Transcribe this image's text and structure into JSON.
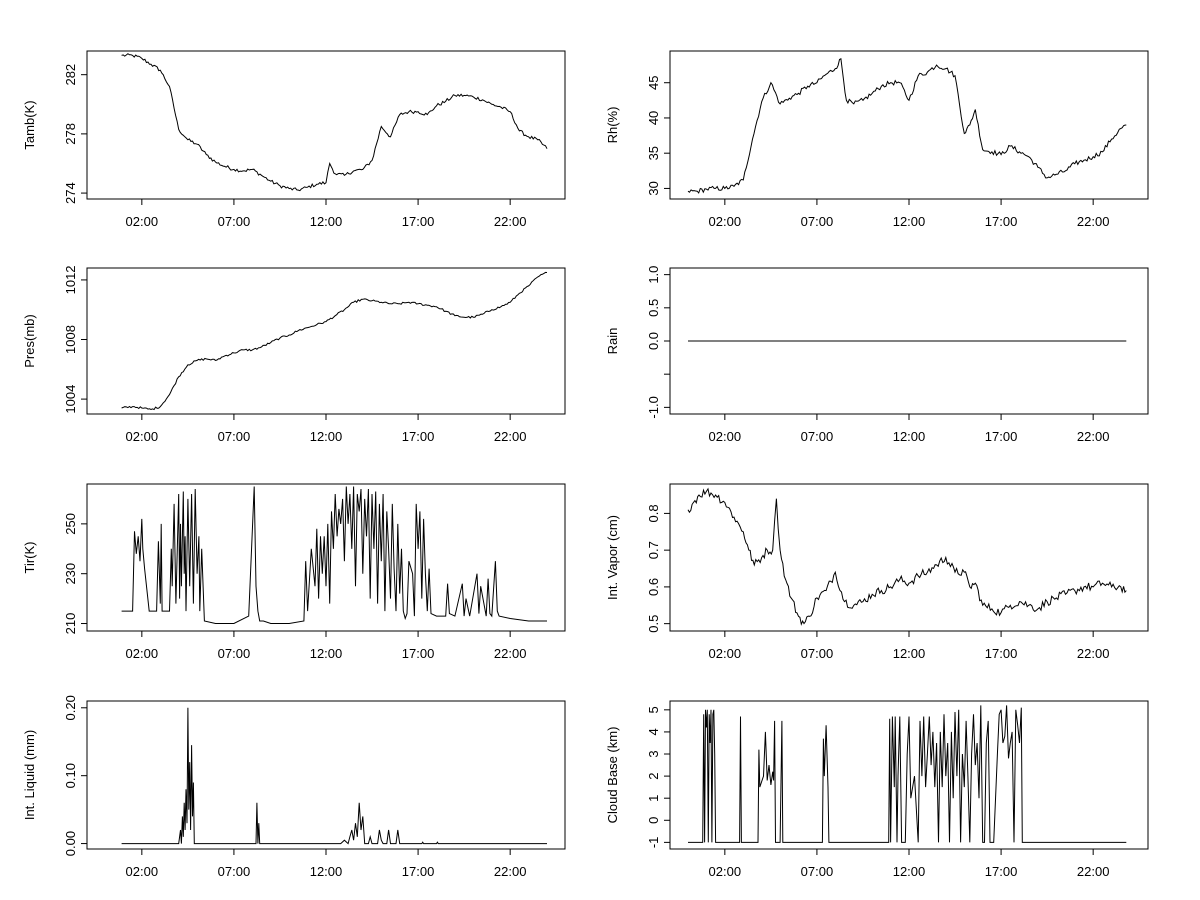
{
  "chart_data": [
    {
      "type": "line",
      "ylabel": "Tamb(K)",
      "xlim": [
        0,
        24
      ],
      "ylim": [
        273.6,
        283.6
      ],
      "yticks": [
        274,
        278,
        282
      ],
      "xticks": [
        2,
        7,
        12,
        17,
        22
      ],
      "xtick_labels": [
        "02:00",
        "07:00",
        "12:00",
        "17:00",
        "22:00"
      ],
      "noise": 0.12,
      "x": [
        0.9,
        1.5,
        2.0,
        2.5,
        3.0,
        3.5,
        4.0,
        4.5,
        5.0,
        5.5,
        6.0,
        6.5,
        7.0,
        7.5,
        8.0,
        8.5,
        9.0,
        9.5,
        10.0,
        10.5,
        11.0,
        11.5,
        12.0,
        12.2,
        12.5,
        13.0,
        13.5,
        14.0,
        14.5,
        15.0,
        15.5,
        16.0,
        16.5,
        17.0,
        17.5,
        18.0,
        18.5,
        19.0,
        19.5,
        20.0,
        20.5,
        21.0,
        21.5,
        22.0,
        22.5,
        23.0,
        23.5,
        24.0
      ],
      "y": [
        283.3,
        283.3,
        283.1,
        282.7,
        282.3,
        281.2,
        278.3,
        277.6,
        277.3,
        276.6,
        276.1,
        275.8,
        275.6,
        275.5,
        275.6,
        275.2,
        274.8,
        274.5,
        274.3,
        274.2,
        274.4,
        274.6,
        274.7,
        276.0,
        275.3,
        275.2,
        275.5,
        275.6,
        276.2,
        278.5,
        277.8,
        279.3,
        279.5,
        279.5,
        279.3,
        279.9,
        280.2,
        280.6,
        280.6,
        280.5,
        280.3,
        280.0,
        279.8,
        279.5,
        278.2,
        277.8,
        277.6,
        277.0
      ]
    },
    {
      "type": "line",
      "ylabel": "Rh(%)",
      "xlim": [
        0,
        24
      ],
      "ylim": [
        28.5,
        49.5
      ],
      "yticks": [
        30,
        35,
        40,
        45
      ],
      "xticks": [
        2,
        7,
        12,
        17,
        22
      ],
      "xtick_labels": [
        "02:00",
        "07:00",
        "12:00",
        "17:00",
        "22:00"
      ],
      "noise": 0.35,
      "x": [
        0.0,
        0.5,
        1.0,
        1.5,
        2.0,
        2.5,
        3.0,
        3.5,
        4.0,
        4.5,
        5.0,
        5.5,
        6.0,
        6.5,
        7.0,
        7.5,
        8.0,
        8.3,
        8.6,
        9.0,
        9.5,
        10.0,
        10.5,
        11.0,
        11.5,
        12.0,
        12.5,
        13.0,
        13.5,
        14.0,
        14.5,
        15.0,
        15.3,
        15.6,
        16.0,
        16.5,
        17.0,
        17.5,
        18.0,
        18.5,
        19.0,
        19.5,
        20.0,
        20.5,
        21.0,
        21.5,
        22.0,
        22.5,
        23.0,
        23.5,
        23.8
      ],
      "y": [
        29.6,
        29.6,
        29.9,
        30.0,
        30.0,
        30.3,
        31.2,
        37.0,
        42.3,
        45.0,
        42.0,
        42.8,
        43.5,
        44.5,
        45.0,
        46.2,
        47.0,
        48.4,
        42.5,
        42.0,
        42.5,
        43.5,
        44.5,
        45.0,
        45.0,
        42.5,
        46.0,
        46.5,
        47.5,
        47.0,
        46.0,
        37.8,
        39.0,
        41.2,
        35.5,
        35.2,
        34.8,
        36.0,
        35.2,
        34.5,
        33.0,
        31.5,
        32.0,
        32.5,
        33.5,
        34.0,
        34.5,
        35.2,
        37.0,
        38.5,
        39.0
      ]
    },
    {
      "type": "line",
      "ylabel": "Pres(mb)",
      "xlim": [
        0,
        24
      ],
      "ylim": [
        1003,
        1012.8
      ],
      "yticks": [
        1004,
        1008,
        1012
      ],
      "xticks": [
        2,
        7,
        12,
        17,
        22
      ],
      "xtick_labels": [
        "02:00",
        "07:00",
        "12:00",
        "17:00",
        "22:00"
      ],
      "noise": 0.07,
      "x": [
        0.9,
        1.5,
        2.0,
        2.5,
        3.0,
        3.5,
        4.0,
        4.5,
        5.0,
        5.5,
        6.0,
        6.5,
        7.0,
        7.5,
        8.0,
        8.5,
        9.0,
        9.5,
        10.0,
        10.5,
        11.0,
        11.5,
        12.0,
        12.5,
        13.0,
        13.5,
        14.0,
        14.5,
        15.0,
        15.5,
        16.0,
        16.5,
        17.0,
        17.5,
        18.0,
        18.5,
        19.0,
        19.5,
        20.0,
        20.5,
        21.0,
        21.5,
        22.0,
        22.5,
        23.0,
        23.5,
        24.0
      ],
      "y": [
        1003.4,
        1003.5,
        1003.4,
        1003.3,
        1003.5,
        1004.3,
        1005.5,
        1006.3,
        1006.6,
        1006.7,
        1006.6,
        1006.9,
        1007.1,
        1007.3,
        1007.3,
        1007.5,
        1007.8,
        1008.1,
        1008.3,
        1008.6,
        1008.8,
        1009.0,
        1009.2,
        1009.6,
        1010.0,
        1010.5,
        1010.7,
        1010.6,
        1010.5,
        1010.4,
        1010.4,
        1010.5,
        1010.4,
        1010.3,
        1010.2,
        1009.9,
        1009.6,
        1009.5,
        1009.5,
        1009.7,
        1010.0,
        1010.2,
        1010.5,
        1011.1,
        1011.6,
        1012.2,
        1012.5
      ]
    },
    {
      "type": "line",
      "ylabel": "Rain",
      "xlim": [
        0,
        24
      ],
      "ylim": [
        -1.1,
        1.1
      ],
      "yticks": [
        -1.0,
        -0.5,
        0.0,
        0.5,
        1.0
      ],
      "ytick_labels": [
        "-1.0",
        "",
        "0.0",
        "0.5",
        "1.0"
      ],
      "xticks": [
        2,
        7,
        12,
        17,
        22
      ],
      "xtick_labels": [
        "02:00",
        "07:00",
        "12:00",
        "17:00",
        "22:00"
      ],
      "noise": 0,
      "x": [
        0.0,
        23.8
      ],
      "y": [
        0.0,
        0.0
      ]
    },
    {
      "type": "line",
      "ylabel": "Tir(K)",
      "xlim": [
        0,
        24
      ],
      "ylim": [
        207,
        266
      ],
      "yticks": [
        210,
        230,
        250
      ],
      "xticks": [
        2,
        7,
        12,
        17,
        22
      ],
      "xtick_labels": [
        "02:00",
        "07:00",
        "12:00",
        "17:00",
        "22:00"
      ],
      "noise": 0,
      "x": [
        0.9,
        1.5,
        1.6,
        1.7,
        1.8,
        1.9,
        2.0,
        2.05,
        2.15,
        2.4,
        2.8,
        2.9,
        3.0,
        3.05,
        3.1,
        3.5,
        3.6,
        3.65,
        3.75,
        3.85,
        4.0,
        4.05,
        4.1,
        4.15,
        4.25,
        4.3,
        4.35,
        4.4,
        4.5,
        4.6,
        4.7,
        4.8,
        4.9,
        5.0,
        5.1,
        5.15,
        5.25,
        5.4,
        6.0,
        7.0,
        7.8,
        8.1,
        8.2,
        8.3,
        8.4,
        8.6,
        9.0,
        10.0,
        10.8,
        10.9,
        11.0,
        11.2,
        11.4,
        11.5,
        11.6,
        11.7,
        11.8,
        11.9,
        12.0,
        12.1,
        12.2,
        12.3,
        12.4,
        12.5,
        12.6,
        12.7,
        12.8,
        12.9,
        13.0,
        13.1,
        13.2,
        13.3,
        13.4,
        13.5,
        13.6,
        13.7,
        13.8,
        13.9,
        14.0,
        14.1,
        14.2,
        14.3,
        14.4,
        14.5,
        14.6,
        14.7,
        14.8,
        14.9,
        15.0,
        15.1,
        15.2,
        15.3,
        15.4,
        15.5,
        15.6,
        15.7,
        15.8,
        15.9,
        16.0,
        16.1,
        16.2,
        16.3,
        16.4,
        16.5,
        16.7,
        16.8,
        16.9,
        17.0,
        17.1,
        17.2,
        17.3,
        17.4,
        17.5,
        17.6,
        17.7,
        18.0,
        18.5,
        18.6,
        18.7,
        19.0,
        19.4,
        19.5,
        19.6,
        19.8,
        20.2,
        20.3,
        20.4,
        20.7,
        20.8,
        20.9,
        21.0,
        21.2,
        21.3,
        21.4,
        22.0,
        23.0,
        24.0
      ],
      "y": [
        215,
        215,
        247,
        238,
        245,
        235,
        252,
        240,
        232,
        215,
        215,
        243,
        218,
        250,
        215,
        215,
        240,
        225,
        258,
        218,
        262,
        220,
        250,
        225,
        263,
        230,
        245,
        215,
        260,
        225,
        262,
        218,
        264,
        230,
        245,
        215,
        240,
        211,
        210,
        210,
        213,
        265,
        225,
        215,
        211,
        211,
        210,
        210,
        211,
        235,
        215,
        240,
        225,
        248,
        220,
        245,
        230,
        245,
        225,
        250,
        218,
        255,
        240,
        262,
        245,
        256,
        250,
        260,
        235,
        265,
        250,
        262,
        240,
        265,
        225,
        262,
        255,
        264,
        230,
        260,
        245,
        264,
        220,
        262,
        240,
        263,
        218,
        258,
        235,
        262,
        215,
        255,
        240,
        220,
        258,
        232,
        215,
        250,
        222,
        240,
        215,
        212,
        214,
        235,
        230,
        213,
        258,
        240,
        255,
        220,
        252,
        230,
        215,
        232,
        214,
        213,
        213,
        226,
        214,
        213,
        226,
        213,
        220,
        213,
        230,
        214,
        225,
        213,
        228,
        214,
        213,
        235,
        215,
        213,
        212,
        211,
        211
      ]
    },
    {
      "type": "line",
      "ylabel": "Int. Vapor (cm)",
      "xlim": [
        0,
        24
      ],
      "ylim": [
        0.48,
        0.88
      ],
      "yticks": [
        0.5,
        0.6,
        0.7,
        0.8
      ],
      "xticks": [
        2,
        7,
        12,
        17,
        22
      ],
      "xtick_labels": [
        "02:00",
        "07:00",
        "12:00",
        "17:00",
        "22:00"
      ],
      "noise": 0.012,
      "x": [
        0.0,
        0.3,
        0.6,
        1.0,
        1.5,
        2.0,
        2.5,
        3.0,
        3.3,
        3.6,
        4.0,
        4.3,
        4.6,
        4.8,
        5.0,
        5.3,
        5.6,
        6.0,
        6.3,
        6.6,
        7.0,
        7.5,
        8.0,
        8.5,
        9.0,
        9.5,
        10.0,
        10.5,
        11.0,
        11.5,
        12.0,
        12.5,
        13.0,
        13.5,
        14.0,
        14.5,
        15.0,
        15.3,
        15.6,
        16.0,
        16.5,
        17.0,
        17.5,
        18.0,
        18.5,
        19.0,
        19.5,
        20.0,
        20.5,
        21.0,
        21.5,
        22.0,
        22.5,
        23.0,
        23.5,
        23.8
      ],
      "y": [
        0.81,
        0.83,
        0.85,
        0.86,
        0.85,
        0.83,
        0.79,
        0.75,
        0.7,
        0.66,
        0.68,
        0.7,
        0.7,
        0.84,
        0.7,
        0.62,
        0.57,
        0.52,
        0.5,
        0.52,
        0.57,
        0.59,
        0.64,
        0.56,
        0.55,
        0.56,
        0.58,
        0.59,
        0.6,
        0.62,
        0.61,
        0.63,
        0.64,
        0.66,
        0.68,
        0.64,
        0.64,
        0.6,
        0.61,
        0.55,
        0.54,
        0.53,
        0.55,
        0.56,
        0.55,
        0.54,
        0.56,
        0.57,
        0.58,
        0.59,
        0.6,
        0.6,
        0.61,
        0.6,
        0.6,
        0.59
      ]
    },
    {
      "type": "line",
      "ylabel": "Int. Liquid (mm)",
      "xlim": [
        0,
        24
      ],
      "ylim": [
        -0.008,
        0.21
      ],
      "yticks": [
        0.0,
        0.1,
        0.2
      ],
      "ytick_labels": [
        "0.00",
        "0.10",
        "0.20"
      ],
      "xticks": [
        2,
        7,
        12,
        17,
        22
      ],
      "xtick_labels": [
        "02:00",
        "07:00",
        "12:00",
        "17:00",
        "22:00"
      ],
      "noise": 0,
      "x": [
        0.9,
        4.0,
        4.1,
        4.15,
        4.2,
        4.25,
        4.3,
        4.35,
        4.4,
        4.45,
        4.5,
        4.55,
        4.6,
        4.65,
        4.7,
        4.75,
        4.8,
        4.85,
        5.0,
        8.2,
        8.25,
        8.3,
        8.35,
        8.4,
        12.8,
        13.0,
        13.2,
        13.3,
        13.4,
        13.5,
        13.6,
        13.7,
        13.8,
        13.9,
        14.0,
        14.1,
        14.3,
        14.4,
        14.5,
        14.6,
        14.8,
        14.9,
        15.0,
        15.1,
        15.3,
        15.4,
        15.5,
        15.6,
        15.8,
        15.9,
        16.0,
        17.2,
        17.25,
        17.3,
        18.0,
        18.05,
        18.1,
        24.0
      ],
      "y": [
        0.0,
        0.0,
        0.02,
        0.0,
        0.04,
        0.01,
        0.06,
        0.02,
        0.08,
        0.03,
        0.2,
        0.05,
        0.12,
        0.02,
        0.145,
        0.04,
        0.09,
        0.0,
        0.0,
        0.0,
        0.06,
        0.0,
        0.03,
        0.0,
        0.0,
        0.005,
        0.0,
        0.01,
        0.02,
        0.005,
        0.03,
        0.01,
        0.06,
        0.02,
        0.04,
        0.0,
        0.0,
        0.01,
        0.0,
        0.0,
        0.0,
        0.02,
        0.005,
        0.0,
        0.0,
        0.02,
        0.0,
        0.0,
        0.0,
        0.02,
        0.0,
        0.0,
        0.002,
        0.0,
        0.0,
        0.002,
        0.0,
        0.0
      ]
    },
    {
      "type": "line",
      "ylabel": "Cloud Base (km)",
      "xlim": [
        0,
        24
      ],
      "ylim": [
        -1.3,
        5.4
      ],
      "yticks": [
        -1,
        0,
        1,
        2,
        3,
        4,
        5
      ],
      "xticks": [
        2,
        7,
        12,
        17,
        22
      ],
      "xtick_labels": [
        "02:00",
        "07:00",
        "12:00",
        "17:00",
        "22:00"
      ],
      "noise": 0,
      "x": [
        0.0,
        0.8,
        0.85,
        0.9,
        0.95,
        1.0,
        1.05,
        1.1,
        1.15,
        1.2,
        1.25,
        1.3,
        1.35,
        1.4,
        1.45,
        1.5,
        1.55,
        2.0,
        2.8,
        2.85,
        2.9,
        3.8,
        3.85,
        3.9,
        4.1,
        4.2,
        4.3,
        4.4,
        4.5,
        4.6,
        4.65,
        4.7,
        4.75,
        5.0,
        5.1,
        5.15,
        5.2,
        7.3,
        7.35,
        7.4,
        7.5,
        7.6,
        7.65,
        10.9,
        10.95,
        11.0,
        11.1,
        11.2,
        11.25,
        11.35,
        11.4,
        11.5,
        11.6,
        11.7,
        11.8,
        11.9,
        12.0,
        12.1,
        12.3,
        12.5,
        12.6,
        12.7,
        12.8,
        12.9,
        13.0,
        13.1,
        13.2,
        13.3,
        13.4,
        13.5,
        13.6,
        13.7,
        13.8,
        13.9,
        14.0,
        14.1,
        14.2,
        14.3,
        14.4,
        14.5,
        14.6,
        14.7,
        14.8,
        14.9,
        15.0,
        15.1,
        15.2,
        15.3,
        15.4,
        15.5,
        15.6,
        15.7,
        15.8,
        15.9,
        16.0,
        16.1,
        16.2,
        16.3,
        16.4,
        16.6,
        16.8,
        16.9,
        17.0,
        17.1,
        17.2,
        17.3,
        17.4,
        17.5,
        17.6,
        17.7,
        17.8,
        17.9,
        18.0,
        18.1,
        18.15,
        18.2,
        23.8
      ],
      "y": [
        -1,
        -1,
        4.8,
        -1,
        5.0,
        4.2,
        5.0,
        -1,
        4.8,
        3.5,
        5.0,
        -1,
        4.8,
        5.0,
        3.0,
        -1,
        -1,
        -1,
        -1,
        4.7,
        -1,
        -1,
        3.2,
        1.5,
        2.0,
        4.0,
        1.8,
        2.5,
        1.6,
        2.2,
        1.8,
        4.5,
        -1,
        -1,
        4.5,
        -1,
        -1,
        -1,
        3.7,
        2.0,
        4.3,
        1.5,
        -1,
        -1,
        4.6,
        -1,
        4.7,
        1.5,
        4.7,
        -1,
        2.0,
        4.7,
        -1,
        -1,
        -1,
        3.0,
        4.7,
        1.0,
        2.0,
        -1,
        4.5,
        2.0,
        4.7,
        1.5,
        3.0,
        4.7,
        2.5,
        4.0,
        1.5,
        3.5,
        -1,
        4.0,
        1.5,
        4.8,
        2.0,
        3.5,
        -1,
        4.0,
        1.0,
        4.9,
        2.0,
        5.0,
        -1,
        3.0,
        1.5,
        4.5,
        2.0,
        -1,
        3.0,
        4.8,
        2.5,
        3.5,
        1.0,
        5.2,
        -1,
        -1,
        3.5,
        4.5,
        -1,
        -1,
        3.0,
        4.8,
        5.0,
        3.5,
        3.8,
        5.2,
        2.8,
        3.5,
        4.0,
        -1,
        5.0,
        4.3,
        3.5,
        5.1,
        -1,
        -1,
        -1
      ]
    }
  ]
}
